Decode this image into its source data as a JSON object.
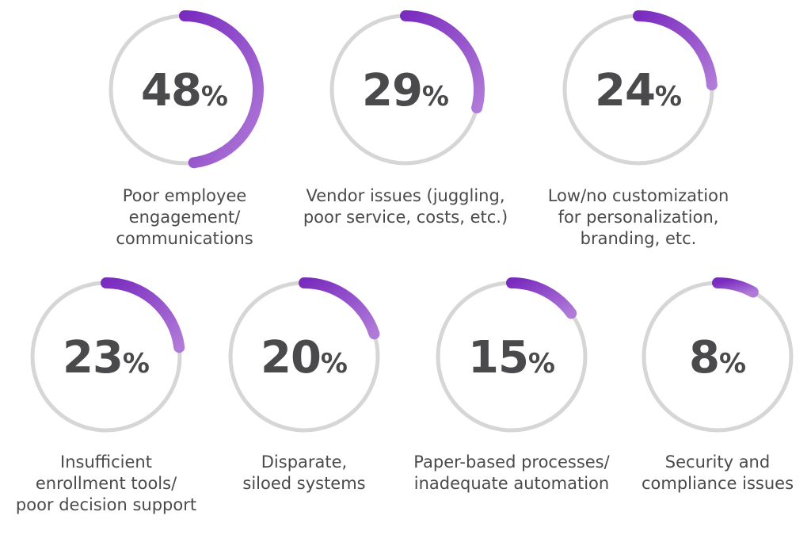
{
  "chart_data": {
    "type": "donut",
    "unit": "%",
    "items": [
      {
        "label": "Poor employee\nengagement/\ncommunications",
        "value": 48
      },
      {
        "label": "Vendor issues (juggling,\npoor service, costs, etc.)",
        "value": 29
      },
      {
        "label": "Low/no customization\nfor personalization,\nbranding, etc.",
        "value": 24
      },
      {
        "label": "Insufficient\nenrollment tools/\npoor decision support",
        "value": 23
      },
      {
        "label": "Disparate,\nsiloed systems",
        "value": 20
      },
      {
        "label": "Paper-based processes/\ninadequate automation",
        "value": 15
      },
      {
        "label": "Security and\ncompliance issues",
        "value": 8
      }
    ]
  },
  "colors": {
    "track": "#d6d6d6",
    "arc_start": "#7a2cbf",
    "arc_end": "#b07ad8",
    "text": "#4a4a4c"
  }
}
